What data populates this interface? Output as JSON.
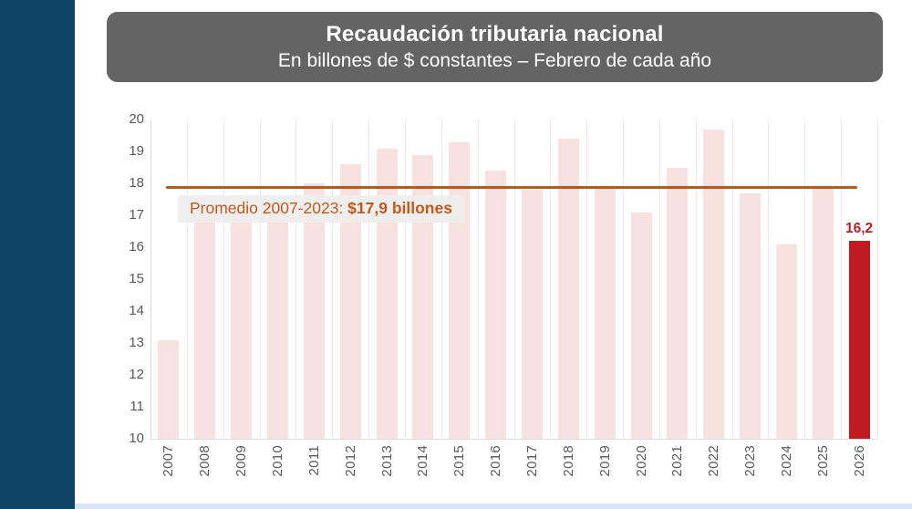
{
  "header": {
    "title": "Recaudación tributaria nacional",
    "subtitle": "En billones de $ constantes – Febrero de cada año",
    "box_color": "#646464",
    "text_color": "#ffffff"
  },
  "accents": {
    "sidebar_color": "#0e4567",
    "bottom_strip_color": "#d9e6f1"
  },
  "chart_data": {
    "type": "bar",
    "title": "Recaudación tributaria nacional",
    "subtitle": "En billones de $ constantes – Febrero de cada año",
    "xlabel": "",
    "ylabel": "",
    "categories": [
      "2007",
      "2008",
      "2009",
      "2010",
      "2011",
      "2012",
      "2013",
      "2014",
      "2015",
      "2016",
      "2017",
      "2018",
      "2019",
      "2020",
      "2021",
      "2022",
      "2023",
      "2024",
      "2025",
      "2026"
    ],
    "values": [
      13.1,
      17.1,
      17.2,
      17.3,
      18.0,
      18.6,
      19.1,
      18.9,
      19.3,
      18.4,
      17.8,
      19.4,
      17.9,
      17.1,
      18.5,
      19.7,
      17.7,
      16.1,
      17.9,
      16.2
    ],
    "ylim": [
      10,
      20
    ],
    "yticks": [
      10,
      11,
      12,
      13,
      14,
      15,
      16,
      17,
      18,
      19,
      20
    ],
    "grid": "vertical",
    "legend": "none",
    "bar_color": "#f8e1e1",
    "highlight_year": "2026",
    "highlight_color": "#c01b21",
    "highlight_label": "16,2",
    "tick_color": "#595959",
    "reference_line": {
      "value": 17.9,
      "color": "#c0571a",
      "label_prefix": "Promedio 2007-2023: ",
      "label_value": "$17,9 billones",
      "label_text_color": "#c4591a",
      "label_bg": "#efeeee"
    }
  }
}
